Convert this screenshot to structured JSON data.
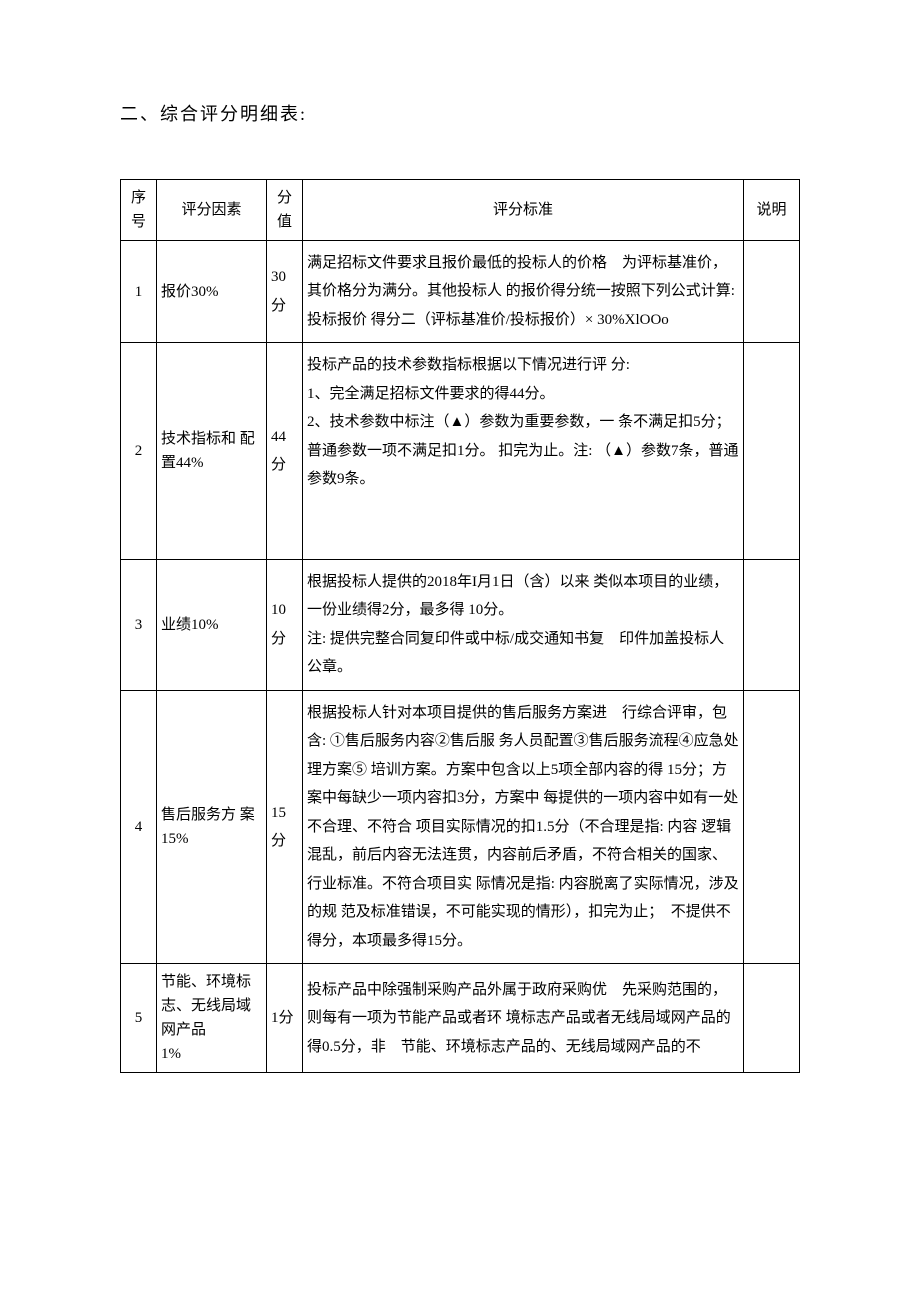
{
  "title": "二、综合评分明细表:",
  "table": {
    "headers": {
      "seq": "序号",
      "factor": "评分因素",
      "score": "分值",
      "criteria": "评分标准",
      "remark": "说明"
    },
    "rows": [
      {
        "seq": "1",
        "factor": "报价30%",
        "score": "30分",
        "criteria": "满足招标文件要求且报价最低的投标人的价格　为评标基准价，其价格分为满分。其他投标人 的报价得分统一按照下列公式计算: 投标报价 得分二（评标基准价/投标报价）× 30%XlOOo",
        "remark": ""
      },
      {
        "seq": "2",
        "factor": "技术指标和 配置44%",
        "score": "44分",
        "criteria": "投标产品的技术参数指标根据以下情况进行评 分:\n1、完全满足招标文件要求的得44分。\n2、技术参数中标注（▲）参数为重要参数，一 条不满足扣5分；普通参数一项不满足扣1分。 扣完为止。注: （▲）参数7条，普通参数9条。\n\n\n",
        "remark": ""
      },
      {
        "seq": "3",
        "factor": "业绩10%",
        "score": "10分",
        "criteria": "根据投标人提供的2018年I月1日（含）以来 类似本项目的业绩，一份业绩得2分，最多得 10分。\n注: 提供完整合同复印件或中标/成交通知书复　印件加盖投标人公章。",
        "remark": ""
      },
      {
        "seq": "4",
        "factor": "售后服务方 案15%",
        "score": "15分",
        "criteria": "根据投标人针对本项目提供的售后服务方案进　行综合评审，包含: ①售后服务内容②售后服 务人员配置③售后服务流程④应急处理方案⑤ 培训方案。方案中包含以上5项全部内容的得 15分；方案中每缺少一项内容扣3分，方案中 每提供的一项内容中如有一处不合理、不符合 项目实际情况的扣1.5分（不合理是指: 内容 逻辑混乱，前后内容无法连贯，内容前后矛盾，不符合相关的国家、行业标准。不符合项目实 际情况是指: 内容脱离了实际情况，涉及的规 范及标准错误，不可能实现的情形），扣完为止；　不提供不得分，本项最多得15分。",
        "remark": ""
      },
      {
        "seq": "5",
        "factor": "节能、环境标 志、无线局域 网产品\n1%",
        "score": "1分",
        "criteria": "投标产品中除强制采购产品外属于政府采购优　先采购范围的，则每有一项为节能产品或者环 境标志产品或者无线局域网产品的得0.5分，非　节能、环境标志产品的、无线局域网产品的不",
        "remark": ""
      }
    ]
  },
  "styles": {
    "background_color": "#ffffff",
    "text_color": "#000000",
    "border_color": "#000000",
    "title_fontsize": 18,
    "body_fontsize": 15,
    "font_family": "SimSun"
  }
}
